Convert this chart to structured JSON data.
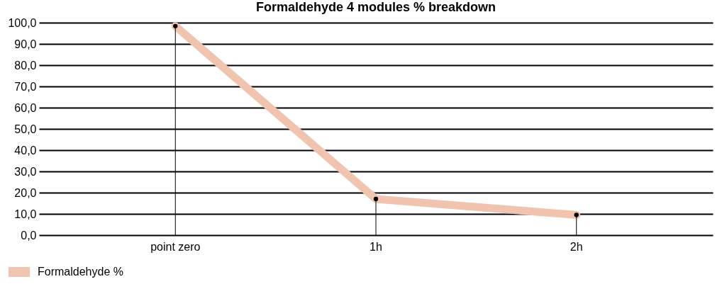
{
  "chart_data": {
    "type": "line",
    "title": "Formaldehyde 4 modules % breakdown",
    "categories": [
      "point zero",
      "1h",
      "2h"
    ],
    "series": [
      {
        "name": "Formaldehyde %",
        "color": "#f0c4ae",
        "values": [
          98.4,
          17.0,
          9.5
        ],
        "errors": [
          [
            0,
            98.4
          ],
          [
            0,
            17.0
          ],
          [
            0,
            9.5
          ]
        ]
      }
    ],
    "ylim": [
      0,
      100
    ],
    "yticks": [
      {
        "value": 0,
        "label": "0,0"
      },
      {
        "value": 10,
        "label": "10,0"
      },
      {
        "value": 20,
        "label": "20,0"
      },
      {
        "value": 30,
        "label": "30,0"
      },
      {
        "value": 40,
        "label": "40,0"
      },
      {
        "value": 50,
        "label": "50,0"
      },
      {
        "value": 60,
        "label": "60,0"
      },
      {
        "value": 70,
        "label": "70,0"
      },
      {
        "value": 80,
        "label": "80,0"
      },
      {
        "value": 90,
        "label": "90,0"
      },
      {
        "value": 100,
        "label": "100,0"
      }
    ],
    "grid": "y",
    "legend": "bottom left",
    "marker": "circle",
    "line_style": "solid"
  }
}
